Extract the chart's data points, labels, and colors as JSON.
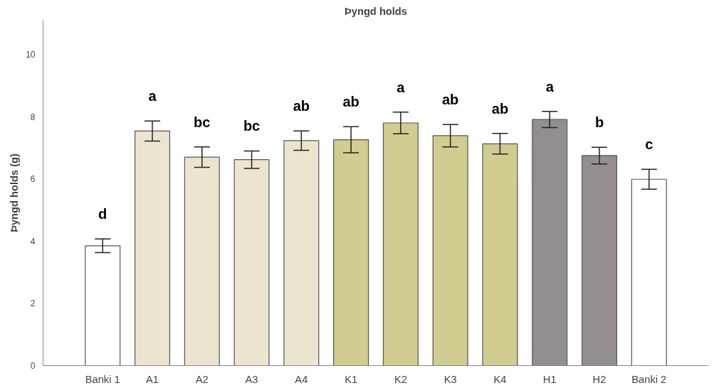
{
  "chart_data": {
    "type": "bar",
    "title": "Þyngd holds",
    "ylabel": "Þyngd holds (g)",
    "categories": [
      "Banki 1",
      "A1",
      "A2",
      "A3",
      "A4",
      "K1",
      "K2",
      "K3",
      "K4",
      "H1",
      "H2",
      "Banki 2"
    ],
    "values": [
      3.85,
      7.54,
      6.7,
      6.62,
      7.23,
      7.26,
      7.8,
      7.39,
      7.13,
      7.91,
      6.75,
      5.99
    ],
    "errors": [
      0.22,
      0.32,
      0.33,
      0.28,
      0.31,
      0.42,
      0.35,
      0.36,
      0.33,
      0.26,
      0.27,
      0.32
    ],
    "colors": [
      "#ffffff",
      "#ebe5d0",
      "#ebe5d0",
      "#ebe5d0",
      "#ebe5d0",
      "#d1cc8f",
      "#d1cc8f",
      "#d1cc8f",
      "#d1cc8f",
      "#948f8e",
      "#948f8e",
      "#ffffff"
    ],
    "ylim": [
      0,
      11.1
    ],
    "yticks": [
      0,
      2,
      4,
      6,
      8,
      10
    ],
    "grid": false,
    "annotations": [
      "d",
      "a",
      "bc",
      "bc",
      "ab",
      "ab",
      "a",
      "ab",
      "ab",
      "a",
      "b",
      "c"
    ]
  }
}
